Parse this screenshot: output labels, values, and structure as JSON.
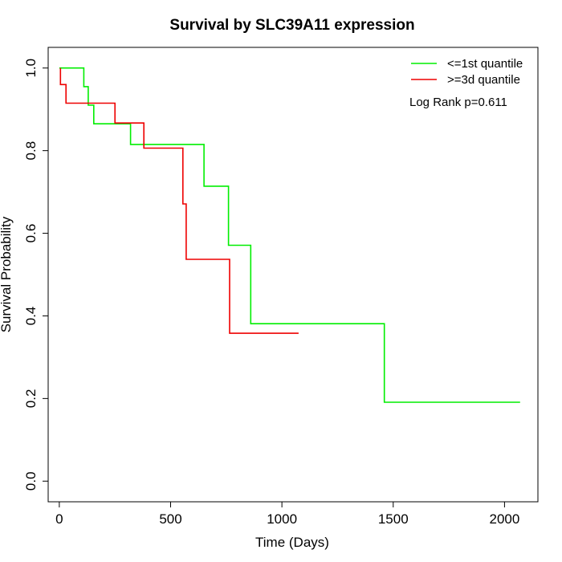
{
  "chart_data": {
    "type": "line",
    "title": "Survival by SLC39A11 expression",
    "xlabel": "Time (Days)",
    "ylabel": "Survival Probability",
    "xlim": [
      -50,
      2150
    ],
    "ylim": [
      -0.05,
      1.05
    ],
    "xticks": [
      0,
      500,
      1000,
      1500,
      2000
    ],
    "yticks": [
      0.0,
      0.2,
      0.4,
      0.6,
      0.8,
      1.0
    ],
    "xtick_labels": [
      "0",
      "500",
      "1000",
      "1500",
      "2000"
    ],
    "ytick_labels": [
      "0.0",
      "0.2",
      "0.4",
      "0.6",
      "0.8",
      "1.0"
    ],
    "grid": false,
    "legend_position": "top-right",
    "annotation": "Log Rank p=0.611",
    "series": [
      {
        "name": "<=1st quantile",
        "color": "#00ee00",
        "x": [
          0,
          110,
          110,
          130,
          130,
          155,
          155,
          320,
          320,
          650,
          650,
          760,
          760,
          860,
          860,
          1460,
          1460,
          2070
        ],
        "y": [
          1.0,
          1.0,
          0.955,
          0.955,
          0.91,
          0.91,
          0.865,
          0.865,
          0.815,
          0.815,
          0.714,
          0.714,
          0.571,
          0.571,
          0.381,
          0.381,
          0.191,
          0.191
        ]
      },
      {
        "name": ">=3d quantile",
        "color": "#ee0000",
        "x": [
          5,
          5,
          15,
          15,
          30,
          30,
          250,
          250,
          380,
          380,
          555,
          555,
          570,
          570,
          765,
          765,
          1075
        ],
        "y": [
          1.0,
          0.96,
          0.96,
          0.96,
          0.96,
          0.915,
          0.915,
          0.867,
          0.867,
          0.806,
          0.806,
          0.671,
          0.671,
          0.537,
          0.537,
          0.358,
          0.358
        ]
      }
    ]
  }
}
